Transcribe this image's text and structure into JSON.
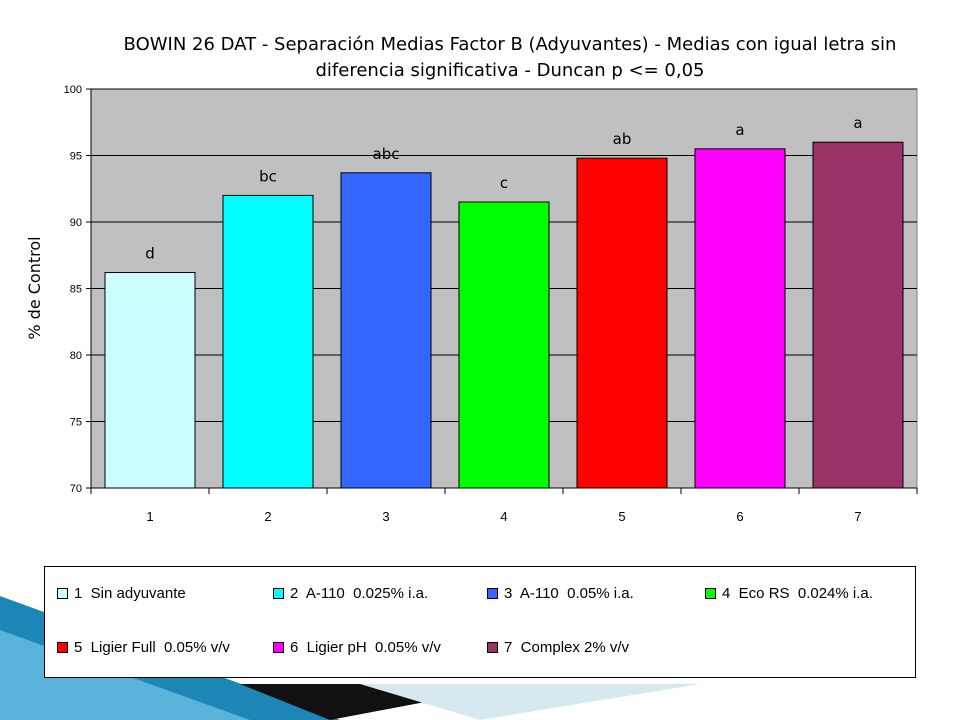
{
  "chart_data": {
    "type": "bar",
    "title": "BOWIN 26 DAT - Separación Medias Factor B (Adyuvantes) - Medias con igual letra sin diferencia significativa - Duncan p <=  0,05",
    "title_lines": [
      "BOWIN 26 DAT - Separación Medias Factor B (Adyuvantes) - Medias con igual letra sin",
      "diferencia significativa - Duncan p <=  0,05"
    ],
    "xlabel": "",
    "ylabel": "% de Control",
    "ylim": [
      70,
      100
    ],
    "yticks": [
      "70",
      "75",
      "80",
      "85",
      "90",
      "95",
      "100"
    ],
    "categories": [
      "1",
      "2",
      "3",
      "4",
      "5",
      "6",
      "7"
    ],
    "values": [
      86.2,
      92.0,
      93.7,
      91.5,
      94.8,
      95.5,
      96.0
    ],
    "letters": [
      "d",
      "bc",
      "abc",
      "c",
      "ab",
      "a",
      "a"
    ],
    "colors": [
      "#ccffff",
      "#00ffff",
      "#3366ff",
      "#00ff00",
      "#ff0000",
      "#ff00ff",
      "#993366"
    ],
    "plot_background": "#c0c0c0",
    "grid": true,
    "legend_position": "bottom",
    "legend": [
      "1  Sin adyuvante",
      "2  A-110  0.025% i.a.",
      "3  A-110  0.05% i.a.",
      "4  Eco RS  0.024% i.a.",
      "5  Ligier Full  0.05% v/v",
      "6  Ligier pH  0.05% v/v",
      "7  Complex 2% v/v"
    ]
  }
}
